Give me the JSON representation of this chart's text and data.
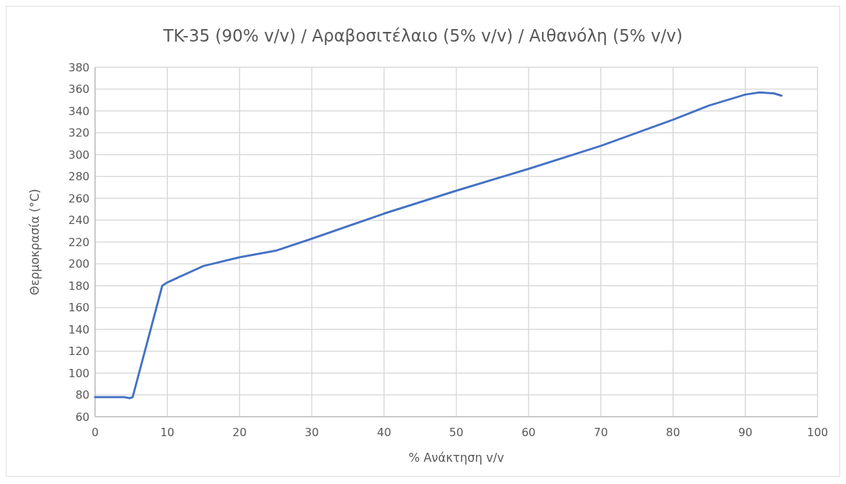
{
  "chart_data": {
    "type": "line",
    "title": "TK-35 (90% v/v) / Αραβοσιτέλαιο (5% v/v) / Αιθανόλη (5% v/v)",
    "xlabel": "% Ανάκτηση v/v",
    "ylabel": "Θερμοκρασία (°C)",
    "x": [
      0,
      4,
      4.8,
      5.2,
      9.3,
      10,
      15,
      20,
      25,
      30,
      40,
      50,
      60,
      70,
      80,
      85,
      90,
      92,
      94,
      95
    ],
    "series": [
      {
        "color": "#4472c4",
        "values": [
          78,
          78,
          77,
          78,
          180,
          183,
          198,
          206,
          212,
          223,
          246,
          267,
          287,
          308,
          332,
          345,
          355,
          357,
          356,
          354
        ]
      }
    ],
    "xlim": [
      0,
      100
    ],
    "xticks": [
      0,
      10,
      20,
      30,
      40,
      50,
      60,
      70,
      80,
      90,
      100
    ],
    "ylim": [
      60,
      380
    ],
    "yticks": [
      60,
      80,
      100,
      120,
      140,
      160,
      180,
      200,
      220,
      240,
      260,
      280,
      300,
      320,
      340,
      360,
      380
    ],
    "grid": true,
    "marker": "none",
    "line_style": "solid"
  }
}
